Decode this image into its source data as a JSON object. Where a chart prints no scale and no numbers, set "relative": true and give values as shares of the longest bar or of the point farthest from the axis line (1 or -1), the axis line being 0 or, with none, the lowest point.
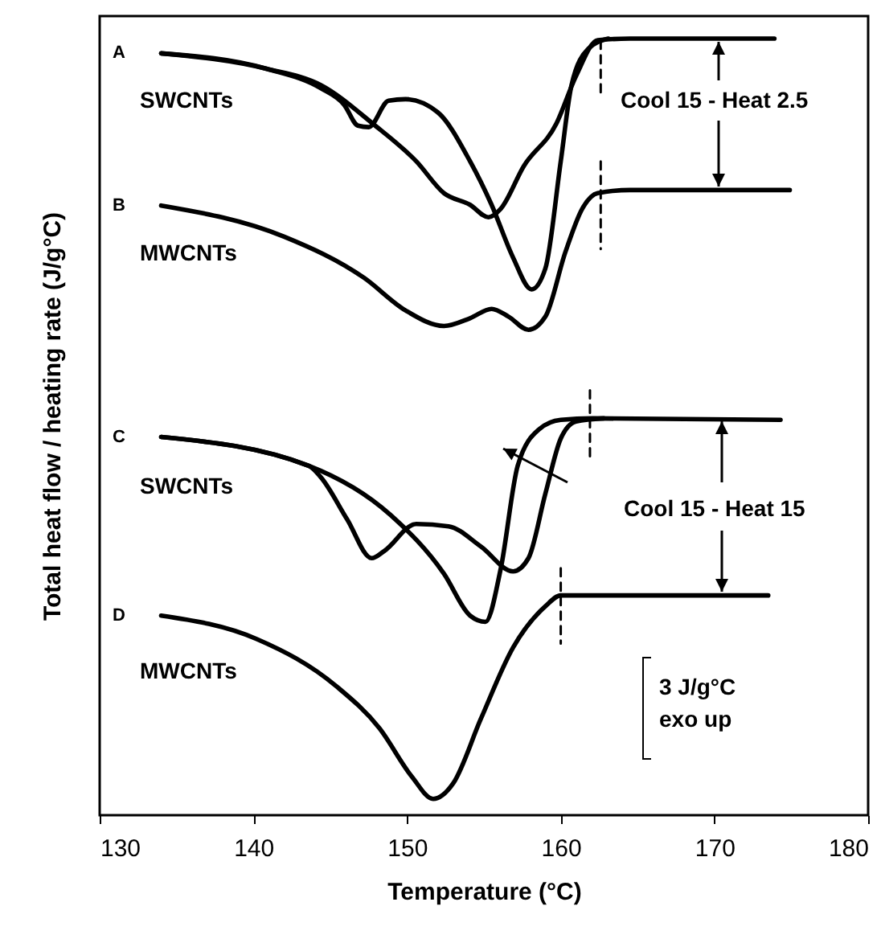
{
  "chart_data": {
    "type": "line",
    "relative": true,
    "xlabel": "Temperature (°C)",
    "ylabel": "Total heat flow / heating rate (J/g°C)",
    "xlim": [
      130,
      180
    ],
    "xticks": [
      130,
      140,
      150,
      160,
      170,
      180
    ],
    "grid": false,
    "marker": "none",
    "line_style": "solid",
    "series": [
      {
        "color": "#000000",
        "x": [
          134.0,
          140.9,
          144.4,
          147.8,
          150.6,
          152.4,
          154.1,
          155.3,
          156.1,
          157.6,
          159.7,
          161.0,
          162.4,
          164.5,
          173.9
        ],
        "values": [
          0.981,
          0.961,
          0.94,
          0.89,
          0.842,
          0.801,
          0.786,
          0.77,
          0.781,
          0.836,
          0.89,
          0.952,
          0.998,
          1.0,
          1.0
        ]
      },
      {
        "color": "#000000",
        "x": [
          134.0,
          140.9,
          144.4,
          145.9,
          146.8,
          147.5,
          148.8,
          149.9,
          152.0,
          154.1,
          155.5,
          156.9,
          158.1,
          159.0,
          160.0,
          160.7,
          161.8,
          163.1
        ],
        "values": [
          0.981,
          0.961,
          0.936,
          0.915,
          0.888,
          0.886,
          0.92,
          0.922,
          0.905,
          0.842,
          0.786,
          0.718,
          0.677,
          0.704,
          0.842,
          0.94,
          0.987,
          1.0
        ]
      },
      {
        "color": "#000000",
        "x": [
          134.0,
          142.0,
          147.2,
          149.9,
          152.4,
          154.1,
          155.5,
          156.6,
          157.9,
          159.0,
          160.3,
          161.4,
          162.4,
          164.5,
          174.9
        ],
        "values": [
          0.785,
          0.745,
          0.692,
          0.65,
          0.63,
          0.64,
          0.652,
          0.642,
          0.625,
          0.642,
          0.725,
          0.781,
          0.801,
          0.805,
          0.805
        ]
      },
      {
        "color": "#000000",
        "x": [
          134.0,
          143.6,
          148.9,
          152.4,
          154.1,
          155.1,
          156.1,
          157.2,
          158.6,
          160.0,
          162.1,
          174.3
        ],
        "values": [
          0.487,
          0.45,
          0.387,
          0.311,
          0.257,
          0.249,
          0.318,
          0.45,
          0.497,
          0.509,
          0.511,
          0.509
        ]
      },
      {
        "color": "#000000",
        "x": [
          134.0,
          143.6,
          144.4,
          146.1,
          147.7,
          148.5,
          150.6,
          152.7,
          154.8,
          156.9,
          157.9,
          159.0,
          160.0,
          161.0,
          162.8
        ],
        "values": [
          0.487,
          0.45,
          0.435,
          0.381,
          0.331,
          0.34,
          0.375,
          0.372,
          0.346,
          0.314,
          0.331,
          0.414,
          0.485,
          0.507,
          0.511
        ]
      },
      {
        "color": "#000000",
        "x": [
          134.0,
          140.2,
          145.4,
          148.2,
          150.3,
          151.7,
          153.0,
          154.8,
          156.9,
          159.0,
          160.0,
          173.5
        ],
        "values": [
          0.257,
          0.227,
          0.166,
          0.112,
          0.05,
          0.021,
          0.041,
          0.124,
          0.216,
          0.269,
          0.283,
          0.283
        ]
      },
      {
        "color": "#000000",
        "line_style": "dashed",
        "x": [
          162.6,
          162.6
        ],
        "values": [
          0.931,
          1.0
        ]
      },
      {
        "color": "#000000",
        "line_style": "dashed",
        "x": [
          162.6,
          162.6
        ],
        "values": [
          0.842,
          0.729
        ]
      },
      {
        "color": "#000000",
        "line_style": "dashed",
        "x": [
          161.9,
          161.9
        ],
        "values": [
          0.547,
          0.459
        ]
      },
      {
        "color": "#000000",
        "line_style": "dashed",
        "x": [
          160.0,
          160.0
        ],
        "values": [
          0.318,
          0.221
        ]
      }
    ],
    "annotations": [
      "A",
      "SWCNTs",
      "B",
      "MWCNTs",
      "C",
      "SWCNTs",
      "D",
      "MWCNTs",
      "Cool 15 - Heat 2.5",
      "Cool 15 - Heat 15",
      "3 J/g°C\nexo up"
    ]
  }
}
